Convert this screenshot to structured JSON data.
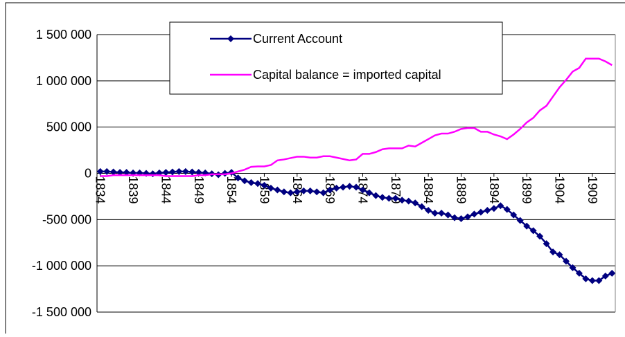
{
  "chart_data": {
    "type": "line",
    "x": [
      1834,
      1835,
      1836,
      1837,
      1838,
      1839,
      1840,
      1841,
      1842,
      1843,
      1844,
      1845,
      1846,
      1847,
      1848,
      1849,
      1850,
      1851,
      1852,
      1853,
      1854,
      1855,
      1856,
      1857,
      1858,
      1859,
      1860,
      1861,
      1862,
      1863,
      1864,
      1865,
      1866,
      1867,
      1868,
      1869,
      1870,
      1871,
      1872,
      1873,
      1874,
      1875,
      1876,
      1877,
      1878,
      1879,
      1880,
      1881,
      1882,
      1883,
      1884,
      1885,
      1886,
      1887,
      1888,
      1889,
      1890,
      1891,
      1892,
      1893,
      1894,
      1895,
      1896,
      1897,
      1898,
      1899,
      1900,
      1901,
      1902,
      1903,
      1904,
      1905,
      1906,
      1907,
      1908,
      1909,
      1910,
      1911,
      1912
    ],
    "xlim": [
      1833.5,
      1912.5
    ],
    "xticks": [
      1834,
      1839,
      1844,
      1849,
      1854,
      1859,
      1864,
      1869,
      1874,
      1879,
      1884,
      1889,
      1894,
      1899,
      1904,
      1909
    ],
    "ylim": [
      -1500000,
      1500000
    ],
    "yticks": [
      {
        "value": -1500000,
        "label": "-1 500 000"
      },
      {
        "value": -1000000,
        "label": "-1 000 000"
      },
      {
        "value": -500000,
        "label": "-500 000"
      },
      0,
      {
        "value": 500000,
        "label": "500 000"
      },
      {
        "value": 1000000,
        "label": "1 000 000"
      },
      {
        "value": 1500000,
        "label": "1 500 000"
      }
    ],
    "grid": true,
    "legend": "top-center",
    "series": [
      {
        "name": "Current Account",
        "color": "#000080",
        "marker": "diamond",
        "values": [
          20000,
          20000,
          15000,
          10000,
          10000,
          5000,
          5000,
          0,
          -5000,
          5000,
          10000,
          15000,
          20000,
          20000,
          15000,
          10000,
          5000,
          -5000,
          -15000,
          0,
          10000,
          -50000,
          -80000,
          -100000,
          -110000,
          -130000,
          -160000,
          -180000,
          -200000,
          -210000,
          -200000,
          -190000,
          -190000,
          -200000,
          -210000,
          -180000,
          -160000,
          -150000,
          -140000,
          -150000,
          -180000,
          -210000,
          -240000,
          -260000,
          -270000,
          -270000,
          -290000,
          -300000,
          -320000,
          -360000,
          -400000,
          -430000,
          -430000,
          -450000,
          -480000,
          -490000,
          -470000,
          -440000,
          -420000,
          -400000,
          -380000,
          -350000,
          -390000,
          -450000,
          -510000,
          -570000,
          -620000,
          -680000,
          -760000,
          -850000,
          -880000,
          -950000,
          -1020000,
          -1080000,
          -1140000,
          -1160000,
          -1160000,
          -1110000,
          -1080000
        ]
      },
      {
        "name": "Capital balance = imported capital",
        "color": "#ff00ff",
        "values": [
          -30000,
          -30000,
          -20000,
          -20000,
          -20000,
          -20000,
          -20000,
          -20000,
          -20000,
          -20000,
          -30000,
          -30000,
          -30000,
          -30000,
          -30000,
          -20000,
          -20000,
          -10000,
          -10000,
          -10000,
          0,
          20000,
          40000,
          70000,
          75000,
          75000,
          90000,
          140000,
          150000,
          165000,
          180000,
          180000,
          170000,
          170000,
          185000,
          185000,
          170000,
          155000,
          140000,
          150000,
          210000,
          210000,
          230000,
          260000,
          270000,
          270000,
          270000,
          300000,
          290000,
          330000,
          370000,
          410000,
          430000,
          430000,
          450000,
          480000,
          490000,
          490000,
          450000,
          450000,
          420000,
          400000,
          370000,
          420000,
          480000,
          550000,
          600000,
          680000,
          730000,
          830000,
          930000,
          1010000,
          1100000,
          1140000,
          1240000,
          1240000,
          1240000,
          1210000,
          1170000
        ]
      }
    ]
  }
}
